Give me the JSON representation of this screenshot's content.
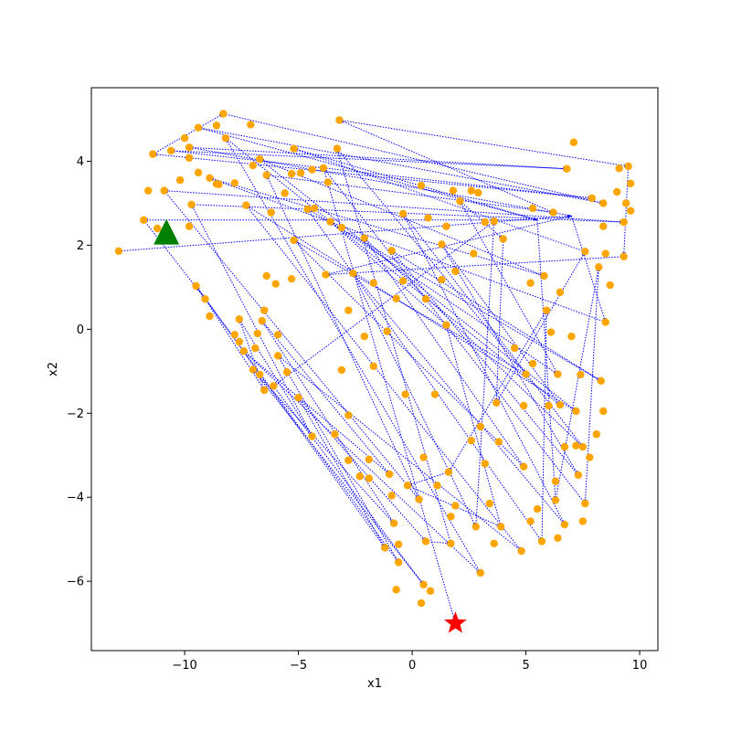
{
  "chart_data": {
    "type": "scatter",
    "xlabel": "x1",
    "ylabel": "x2",
    "xlim": [
      -14.1,
      10.8
    ],
    "ylim": [
      -7.65,
      5.75
    ],
    "grid": false,
    "xticks": [
      -10,
      -5,
      0,
      5,
      10
    ],
    "yticks": [
      -6,
      -4,
      -2,
      0,
      2,
      4
    ],
    "xtick_labels": [
      "−10",
      "−5",
      "0",
      "5",
      "10"
    ],
    "ytick_labels": [
      "−6",
      "−4",
      "−2",
      "0",
      "2",
      "4"
    ],
    "colors": {
      "points": "#ffa500",
      "path": "#0000ff",
      "start_marker": "#008000",
      "end_marker": "#ff0000"
    },
    "start_marker": {
      "shape": "triangle",
      "x": -10.8,
      "y": 2.3
    },
    "end_marker": {
      "shape": "star",
      "x": 1.9,
      "y": -7.0
    },
    "points": [
      [
        -12.9,
        1.86
      ],
      [
        -11.8,
        2.6
      ],
      [
        -11.6,
        3.3
      ],
      [
        -11.4,
        4.17
      ],
      [
        -11.2,
        2.4
      ],
      [
        -10.9,
        3.3
      ],
      [
        -10.6,
        4.25
      ],
      [
        -10.2,
        3.55
      ],
      [
        -10.0,
        4.55
      ],
      [
        -9.8,
        4.33
      ],
      [
        -9.8,
        4.08
      ],
      [
        -9.8,
        2.45
      ],
      [
        -9.7,
        2.97
      ],
      [
        -9.5,
        1.03
      ],
      [
        -9.4,
        3.73
      ],
      [
        -9.4,
        4.8
      ],
      [
        -9.1,
        0.72
      ],
      [
        -8.9,
        0.31
      ],
      [
        -8.9,
        3.6
      ],
      [
        -8.6,
        4.85
      ],
      [
        -8.5,
        3.45
      ],
      [
        -8.3,
        5.13
      ],
      [
        -8.2,
        4.55
      ],
      [
        -7.8,
        -0.13
      ],
      [
        -7.8,
        3.48
      ],
      [
        -7.6,
        -0.3
      ],
      [
        -7.6,
        0.24
      ],
      [
        -7.4,
        -0.52
      ],
      [
        -7.3,
        2.95
      ],
      [
        -7.1,
        4.87
      ],
      [
        -7.0,
        -0.96
      ],
      [
        -7.0,
        3.9
      ],
      [
        -6.9,
        -0.45
      ],
      [
        -6.8,
        -0.1
      ],
      [
        -6.7,
        -1.08
      ],
      [
        -6.7,
        4.05
      ],
      [
        -6.6,
        0.2
      ],
      [
        -6.5,
        -1.45
      ],
      [
        -6.5,
        0.45
      ],
      [
        -6.4,
        1.27
      ],
      [
        -6.4,
        3.67
      ],
      [
        -6.2,
        2.78
      ],
      [
        -6.1,
        -1.35
      ],
      [
        -6.0,
        1.08
      ],
      [
        -5.9,
        -0.13
      ],
      [
        -5.9,
        -0.63
      ],
      [
        -5.6,
        3.24
      ],
      [
        -5.5,
        -1.02
      ],
      [
        -5.3,
        1.2
      ],
      [
        -5.3,
        3.7
      ],
      [
        -5.2,
        2.12
      ],
      [
        -5.2,
        4.3
      ],
      [
        -5.0,
        -1.63
      ],
      [
        -4.9,
        3.72
      ],
      [
        -4.6,
        2.86
      ],
      [
        -4.4,
        -2.55
      ],
      [
        -4.4,
        3.8
      ],
      [
        -3.9,
        3.84
      ],
      [
        -3.8,
        1.3
      ],
      [
        -3.7,
        3.5
      ],
      [
        -3.6,
        2.56
      ],
      [
        -3.4,
        -2.5
      ],
      [
        -3.3,
        4.3
      ],
      [
        -3.2,
        4.98
      ],
      [
        -3.1,
        -0.97
      ],
      [
        -3.1,
        2.42
      ],
      [
        -2.8,
        -2.05
      ],
      [
        -2.8,
        -3.12
      ],
      [
        -2.8,
        0.45
      ],
      [
        -2.6,
        1.33
      ],
      [
        -2.3,
        -3.5
      ],
      [
        -2.1,
        -0.17
      ],
      [
        -2.1,
        2.17
      ],
      [
        -1.9,
        -3.55
      ],
      [
        -1.9,
        -3.1
      ],
      [
        -1.7,
        1.1
      ],
      [
        -1.7,
        -0.88
      ],
      [
        -1.2,
        -5.2
      ],
      [
        -1.1,
        -0.05
      ],
      [
        -1.0,
        -3.45
      ],
      [
        -0.9,
        1.87
      ],
      [
        -0.9,
        -3.96
      ],
      [
        -0.8,
        -4.62
      ],
      [
        -0.7,
        0.73
      ],
      [
        -0.7,
        -6.2
      ],
      [
        -0.6,
        -5.55
      ],
      [
        -0.6,
        -5.12
      ],
      [
        -0.4,
        2.75
      ],
      [
        -0.4,
        1.15
      ],
      [
        -0.3,
        -1.55
      ],
      [
        -0.2,
        -3.72
      ],
      [
        0.3,
        -4.05
      ],
      [
        0.4,
        3.42
      ],
      [
        0.4,
        -6.52
      ],
      [
        0.5,
        -6.08
      ],
      [
        0.5,
        -3.05
      ],
      [
        0.6,
        -5.05
      ],
      [
        0.6,
        0.72
      ],
      [
        0.7,
        2.65
      ],
      [
        0.8,
        -6.23
      ],
      [
        1.0,
        -1.55
      ],
      [
        1.1,
        -3.72
      ],
      [
        1.3,
        1.18
      ],
      [
        1.3,
        2.02
      ],
      [
        1.5,
        2.45
      ],
      [
        1.5,
        0.1
      ],
      [
        1.6,
        -3.4
      ],
      [
        1.7,
        -4.46
      ],
      [
        1.7,
        -5.1
      ],
      [
        1.8,
        3.3
      ],
      [
        1.9,
        -4.2
      ],
      [
        1.9,
        1.38
      ],
      [
        2.1,
        3.05
      ],
      [
        2.6,
        -2.65
      ],
      [
        2.6,
        3.3
      ],
      [
        2.7,
        1.8
      ],
      [
        2.8,
        -4.7
      ],
      [
        3.0,
        -2.32
      ],
      [
        3.0,
        -5.8
      ],
      [
        3.2,
        -3.2
      ],
      [
        3.2,
        2.55
      ],
      [
        3.4,
        -4.15
      ],
      [
        3.6,
        2.57
      ],
      [
        3.6,
        -5.1
      ],
      [
        3.7,
        -1.75
      ],
      [
        3.8,
        -2.68
      ],
      [
        3.9,
        -4.7
      ],
      [
        4.0,
        2.15
      ],
      [
        4.5,
        -0.45
      ],
      [
        4.8,
        -5.28
      ],
      [
        4.9,
        -3.27
      ],
      [
        4.9,
        -1.82
      ],
      [
        5.0,
        -1.07
      ],
      [
        5.2,
        -4.57
      ],
      [
        5.2,
        1.1
      ],
      [
        5.3,
        2.88
      ],
      [
        5.3,
        -0.82
      ],
      [
        5.5,
        -4.28
      ],
      [
        5.7,
        -5.05
      ],
      [
        5.8,
        1.27
      ],
      [
        5.9,
        0.45
      ],
      [
        6.0,
        -1.82
      ],
      [
        6.1,
        -0.07
      ],
      [
        6.2,
        2.78
      ],
      [
        6.3,
        -4.07
      ],
      [
        6.3,
        -3.62
      ],
      [
        6.4,
        -4.97
      ],
      [
        6.4,
        -1.07
      ],
      [
        6.5,
        0.88
      ],
      [
        6.5,
        -1.8
      ],
      [
        6.7,
        -2.8
      ],
      [
        6.7,
        -4.65
      ],
      [
        6.8,
        3.82
      ],
      [
        7.0,
        -0.17
      ],
      [
        7.1,
        4.45
      ],
      [
        7.2,
        -2.77
      ],
      [
        7.2,
        -1.95
      ],
      [
        7.3,
        -3.47
      ],
      [
        7.4,
        -1.08
      ],
      [
        7.5,
        -2.8
      ],
      [
        7.5,
        -4.57
      ],
      [
        7.6,
        -4.15
      ],
      [
        7.6,
        1.85
      ],
      [
        7.8,
        -3.05
      ],
      [
        7.9,
        3.12
      ],
      [
        8.1,
        -2.5
      ],
      [
        8.2,
        1.48
      ],
      [
        8.3,
        -1.23
      ],
      [
        8.4,
        3.0
      ],
      [
        8.4,
        2.45
      ],
      [
        8.4,
        -1.95
      ],
      [
        8.5,
        1.8
      ],
      [
        8.5,
        0.17
      ],
      [
        8.7,
        1.05
      ],
      [
        9.0,
        3.27
      ],
      [
        9.1,
        3.83
      ],
      [
        9.3,
        1.73
      ],
      [
        9.3,
        2.55
      ],
      [
        9.4,
        3.0
      ],
      [
        9.5,
        3.88
      ],
      [
        9.6,
        3.47
      ],
      [
        9.6,
        2.82
      ],
      [
        -8.6,
        3.46
      ],
      [
        -4.3,
        2.88
      ],
      [
        2.9,
        3.25
      ]
    ],
    "path": [
      [
        -12.9,
        1.86
      ],
      [
        7.0,
        2.7
      ],
      [
        -9.8,
        4.33
      ],
      [
        6.8,
        3.82
      ],
      [
        -10.6,
        4.25
      ],
      [
        7.9,
        3.12
      ],
      [
        -11.4,
        4.17
      ],
      [
        -8.3,
        5.13
      ],
      [
        8.4,
        3.0
      ],
      [
        -9.4,
        4.8
      ],
      [
        5.5,
        2.6
      ],
      [
        -11.8,
        2.6
      ],
      [
        -9.1,
        0.72
      ],
      [
        -6.5,
        -1.45
      ],
      [
        -7.6,
        0.24
      ],
      [
        -4.4,
        -2.55
      ],
      [
        -9.7,
        2.97
      ],
      [
        9.3,
        2.55
      ],
      [
        -10.9,
        3.3
      ],
      [
        0.3,
        -4.05
      ],
      [
        -6.4,
        3.67
      ],
      [
        6.2,
        2.78
      ],
      [
        -3.2,
        4.98
      ],
      [
        9.5,
        3.88
      ],
      [
        9.3,
        1.73
      ],
      [
        -3.8,
        1.3
      ],
      [
        7.0,
        2.7
      ],
      [
        8.5,
        0.17
      ],
      [
        -8.9,
        3.6
      ],
      [
        5.8,
        1.27
      ],
      [
        -6.7,
        4.05
      ],
      [
        7.2,
        -1.95
      ],
      [
        -7.3,
        2.95
      ],
      [
        4.8,
        -5.28
      ],
      [
        -5.9,
        -0.63
      ],
      [
        -0.6,
        -5.55
      ],
      [
        -9.5,
        1.03
      ],
      [
        -1.2,
        -5.2
      ],
      [
        -5.0,
        -1.63
      ],
      [
        0.6,
        -5.05
      ],
      [
        1.7,
        -5.1
      ],
      [
        -3.3,
        4.3
      ],
      [
        5.0,
        -1.07
      ],
      [
        -5.2,
        2.12
      ],
      [
        4.9,
        -3.27
      ],
      [
        -2.1,
        2.17
      ],
      [
        7.5,
        -2.8
      ],
      [
        -0.4,
        2.75
      ],
      [
        6.7,
        -4.65
      ],
      [
        -2.6,
        1.33
      ],
      [
        2.8,
        -4.7
      ],
      [
        3.6,
        2.57
      ],
      [
        -6.1,
        -1.35
      ],
      [
        0.5,
        -6.08
      ],
      [
        -7.0,
        -0.96
      ],
      [
        -0.8,
        -4.62
      ],
      [
        -6.6,
        0.2
      ],
      [
        -1.0,
        -3.45
      ],
      [
        -7.4,
        -0.52
      ],
      [
        3.0,
        -5.8
      ],
      [
        -8.2,
        4.55
      ],
      [
        6.5,
        -1.8
      ],
      [
        1.3,
        2.02
      ],
      [
        7.3,
        -3.47
      ],
      [
        -0.9,
        1.87
      ],
      [
        8.3,
        -1.23
      ],
      [
        -4.6,
        2.86
      ],
      [
        5.7,
        -5.05
      ],
      [
        5.9,
        0.45
      ],
      [
        1.6,
        -3.4
      ],
      [
        -0.2,
        -3.72
      ],
      [
        3.9,
        -4.7
      ],
      [
        1.5,
        0.1
      ],
      [
        -3.6,
        2.56
      ],
      [
        6.4,
        -1.07
      ],
      [
        2.1,
        3.05
      ],
      [
        4.0,
        2.15
      ],
      [
        3.7,
        -1.75
      ],
      [
        7.6,
        1.85
      ],
      [
        -5.2,
        4.3
      ],
      [
        5.5,
        2.6
      ],
      [
        6.3,
        -4.07
      ],
      [
        8.2,
        1.48
      ],
      [
        7.6,
        -4.15
      ],
      [
        -3.9,
        3.84
      ],
      [
        1.9,
        -7.0
      ]
    ]
  }
}
